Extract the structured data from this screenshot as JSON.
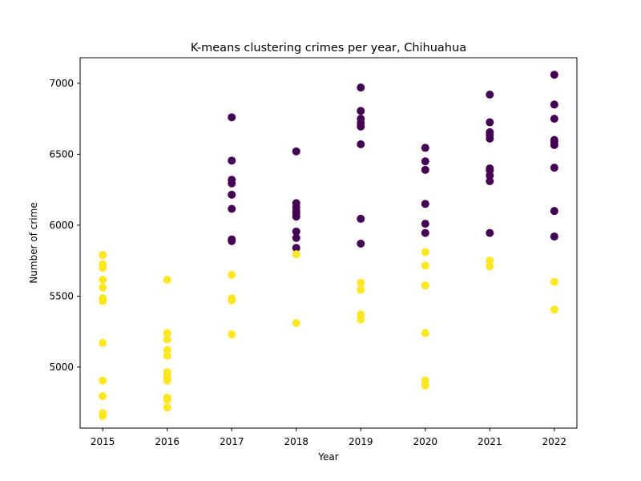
{
  "chart_data": {
    "type": "scatter",
    "title": "K-means clustering crimes per year, Chihuahua",
    "xlabel": "Year",
    "ylabel": "Number of crime",
    "xlim": [
      2014.65,
      2022.35
    ],
    "ylim": [
      4570,
      7180
    ],
    "xticks": [
      2015,
      2016,
      2017,
      2018,
      2019,
      2020,
      2021,
      2022
    ],
    "yticks": [
      5000,
      5500,
      6000,
      6500,
      7000
    ],
    "grid": false,
    "legend": "none",
    "series": [
      {
        "color": "#440154",
        "points": [
          [
            2017,
            6760
          ],
          [
            2017,
            6455
          ],
          [
            2017,
            6320
          ],
          [
            2017,
            6295
          ],
          [
            2017,
            6215
          ],
          [
            2017,
            6115
          ],
          [
            2017,
            5900
          ],
          [
            2017,
            5888
          ],
          [
            2018,
            6520
          ],
          [
            2018,
            6155
          ],
          [
            2018,
            6125
          ],
          [
            2018,
            6100
          ],
          [
            2018,
            6085
          ],
          [
            2018,
            6060
          ],
          [
            2018,
            5955
          ],
          [
            2018,
            5910
          ],
          [
            2018,
            5840
          ],
          [
            2019,
            6970
          ],
          [
            2019,
            6805
          ],
          [
            2019,
            6750
          ],
          [
            2019,
            6720
          ],
          [
            2019,
            6695
          ],
          [
            2019,
            6570
          ],
          [
            2019,
            6045
          ],
          [
            2019,
            5870
          ],
          [
            2020,
            6545
          ],
          [
            2020,
            6450
          ],
          [
            2020,
            6390
          ],
          [
            2020,
            6150
          ],
          [
            2020,
            6010
          ],
          [
            2020,
            5945
          ],
          [
            2021,
            6920
          ],
          [
            2021,
            6725
          ],
          [
            2021,
            6655
          ],
          [
            2021,
            6635
          ],
          [
            2021,
            6610
          ],
          [
            2021,
            6400
          ],
          [
            2021,
            6385
          ],
          [
            2021,
            6350
          ],
          [
            2021,
            6310
          ],
          [
            2021,
            5945
          ],
          [
            2022,
            7060
          ],
          [
            2022,
            6850
          ],
          [
            2022,
            6750
          ],
          [
            2022,
            6600
          ],
          [
            2022,
            6585
          ],
          [
            2022,
            6565
          ],
          [
            2022,
            6405
          ],
          [
            2022,
            6100
          ],
          [
            2022,
            5920
          ]
        ]
      },
      {
        "color": "#fde725",
        "points": [
          [
            2015,
            5790
          ],
          [
            2015,
            5725
          ],
          [
            2015,
            5700
          ],
          [
            2015,
            5615
          ],
          [
            2015,
            5560
          ],
          [
            2015,
            5485
          ],
          [
            2015,
            5465
          ],
          [
            2015,
            5170
          ],
          [
            2015,
            4905
          ],
          [
            2015,
            4795
          ],
          [
            2015,
            4675
          ],
          [
            2015,
            4655
          ],
          [
            2016,
            5615
          ],
          [
            2016,
            5240
          ],
          [
            2016,
            5195
          ],
          [
            2016,
            5120
          ],
          [
            2016,
            5080
          ],
          [
            2016,
            4965
          ],
          [
            2016,
            4940
          ],
          [
            2016,
            4915
          ],
          [
            2016,
            4905
          ],
          [
            2016,
            4785
          ],
          [
            2016,
            4770
          ],
          [
            2016,
            4715
          ],
          [
            2017,
            5650
          ],
          [
            2017,
            5485
          ],
          [
            2017,
            5470
          ],
          [
            2017,
            5230
          ],
          [
            2018,
            5795
          ],
          [
            2018,
            5310
          ],
          [
            2019,
            5595
          ],
          [
            2019,
            5545
          ],
          [
            2019,
            5370
          ],
          [
            2019,
            5335
          ],
          [
            2020,
            5810
          ],
          [
            2020,
            5715
          ],
          [
            2020,
            5575
          ],
          [
            2020,
            5240
          ],
          [
            2020,
            4905
          ],
          [
            2020,
            4870
          ],
          [
            2021,
            5750
          ],
          [
            2021,
            5710
          ],
          [
            2022,
            5600
          ],
          [
            2022,
            5405
          ]
        ]
      }
    ]
  }
}
